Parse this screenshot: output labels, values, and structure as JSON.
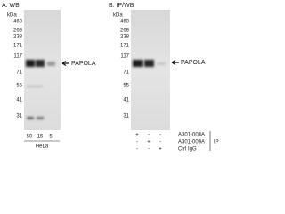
{
  "panels": [
    {
      "title": "A. WB",
      "unit": "kDa",
      "markers": [
        "460",
        "268",
        "238",
        "171",
        "117",
        "71",
        "55",
        "41",
        "31"
      ],
      "target": "PAPOLA",
      "lanes": [
        "50",
        "15",
        "5"
      ],
      "sample": "HeLa"
    },
    {
      "title": "B. IP/WB",
      "unit": "kDa",
      "markers": [
        "460",
        "268",
        "238",
        "171",
        "117",
        "71",
        "55",
        "41",
        "31"
      ],
      "target": "PAPOLA",
      "rows": [
        {
          "label": "A301-008A",
          "signs": [
            "+",
            "-",
            "-"
          ]
        },
        {
          "label": "A301-009A",
          "signs": [
            "-",
            "+",
            "-"
          ]
        },
        {
          "label": "Ctrl IgG",
          "signs": [
            "-",
            "-",
            "+"
          ]
        }
      ],
      "group": "IP"
    }
  ]
}
